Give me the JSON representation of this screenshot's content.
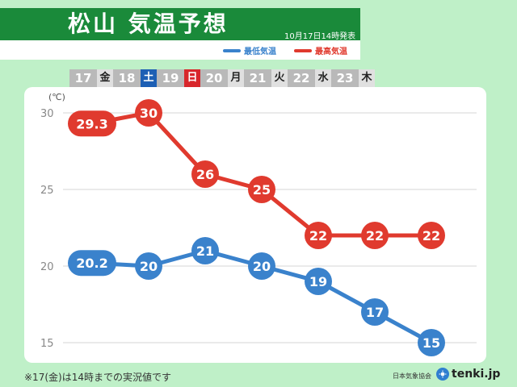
{
  "header": {
    "title": "松山 気温予想",
    "issued": "10月17日14時発表",
    "legend_min": "最低気温",
    "legend_max": "最高気温",
    "color_min": "#3a82cc",
    "color_max": "#e03a2e"
  },
  "days": [
    {
      "num": "17",
      "wd": "金",
      "kind": "weekday"
    },
    {
      "num": "18",
      "wd": "土",
      "kind": "sat"
    },
    {
      "num": "19",
      "wd": "日",
      "kind": "sun"
    },
    {
      "num": "20",
      "wd": "月",
      "kind": "weekday"
    },
    {
      "num": "21",
      "wd": "火",
      "kind": "weekday"
    },
    {
      "num": "22",
      "wd": "水",
      "kind": "weekday"
    },
    {
      "num": "23",
      "wd": "木",
      "kind": "weekday"
    }
  ],
  "chart_data": {
    "type": "line",
    "categories": [
      "17",
      "18",
      "19",
      "20",
      "21",
      "22",
      "23"
    ],
    "ylabel": "(℃)",
    "ylim": [
      15,
      30
    ],
    "yticks": [
      "30",
      "25",
      "20",
      "15"
    ],
    "grid": true,
    "series": [
      {
        "name": "最高気温",
        "color": "#e03a2e",
        "values": [
          29.3,
          30,
          26,
          25,
          22,
          22,
          22
        ],
        "labels": [
          "29.3",
          "30",
          "26",
          "25",
          "22",
          "22",
          "22"
        ]
      },
      {
        "name": "最低気温",
        "color": "#3a82cc",
        "values": [
          20.2,
          20,
          21,
          20,
          19,
          17,
          15
        ],
        "labels": [
          "20.2",
          "20",
          "21",
          "20",
          "19",
          "17",
          "15"
        ]
      }
    ]
  },
  "footer": {
    "note": "※17(金)は14時までの実況値です",
    "org": "日本気象協会",
    "brand": "tenki.jp",
    "brand_icon": "tenki-logo-icon"
  }
}
